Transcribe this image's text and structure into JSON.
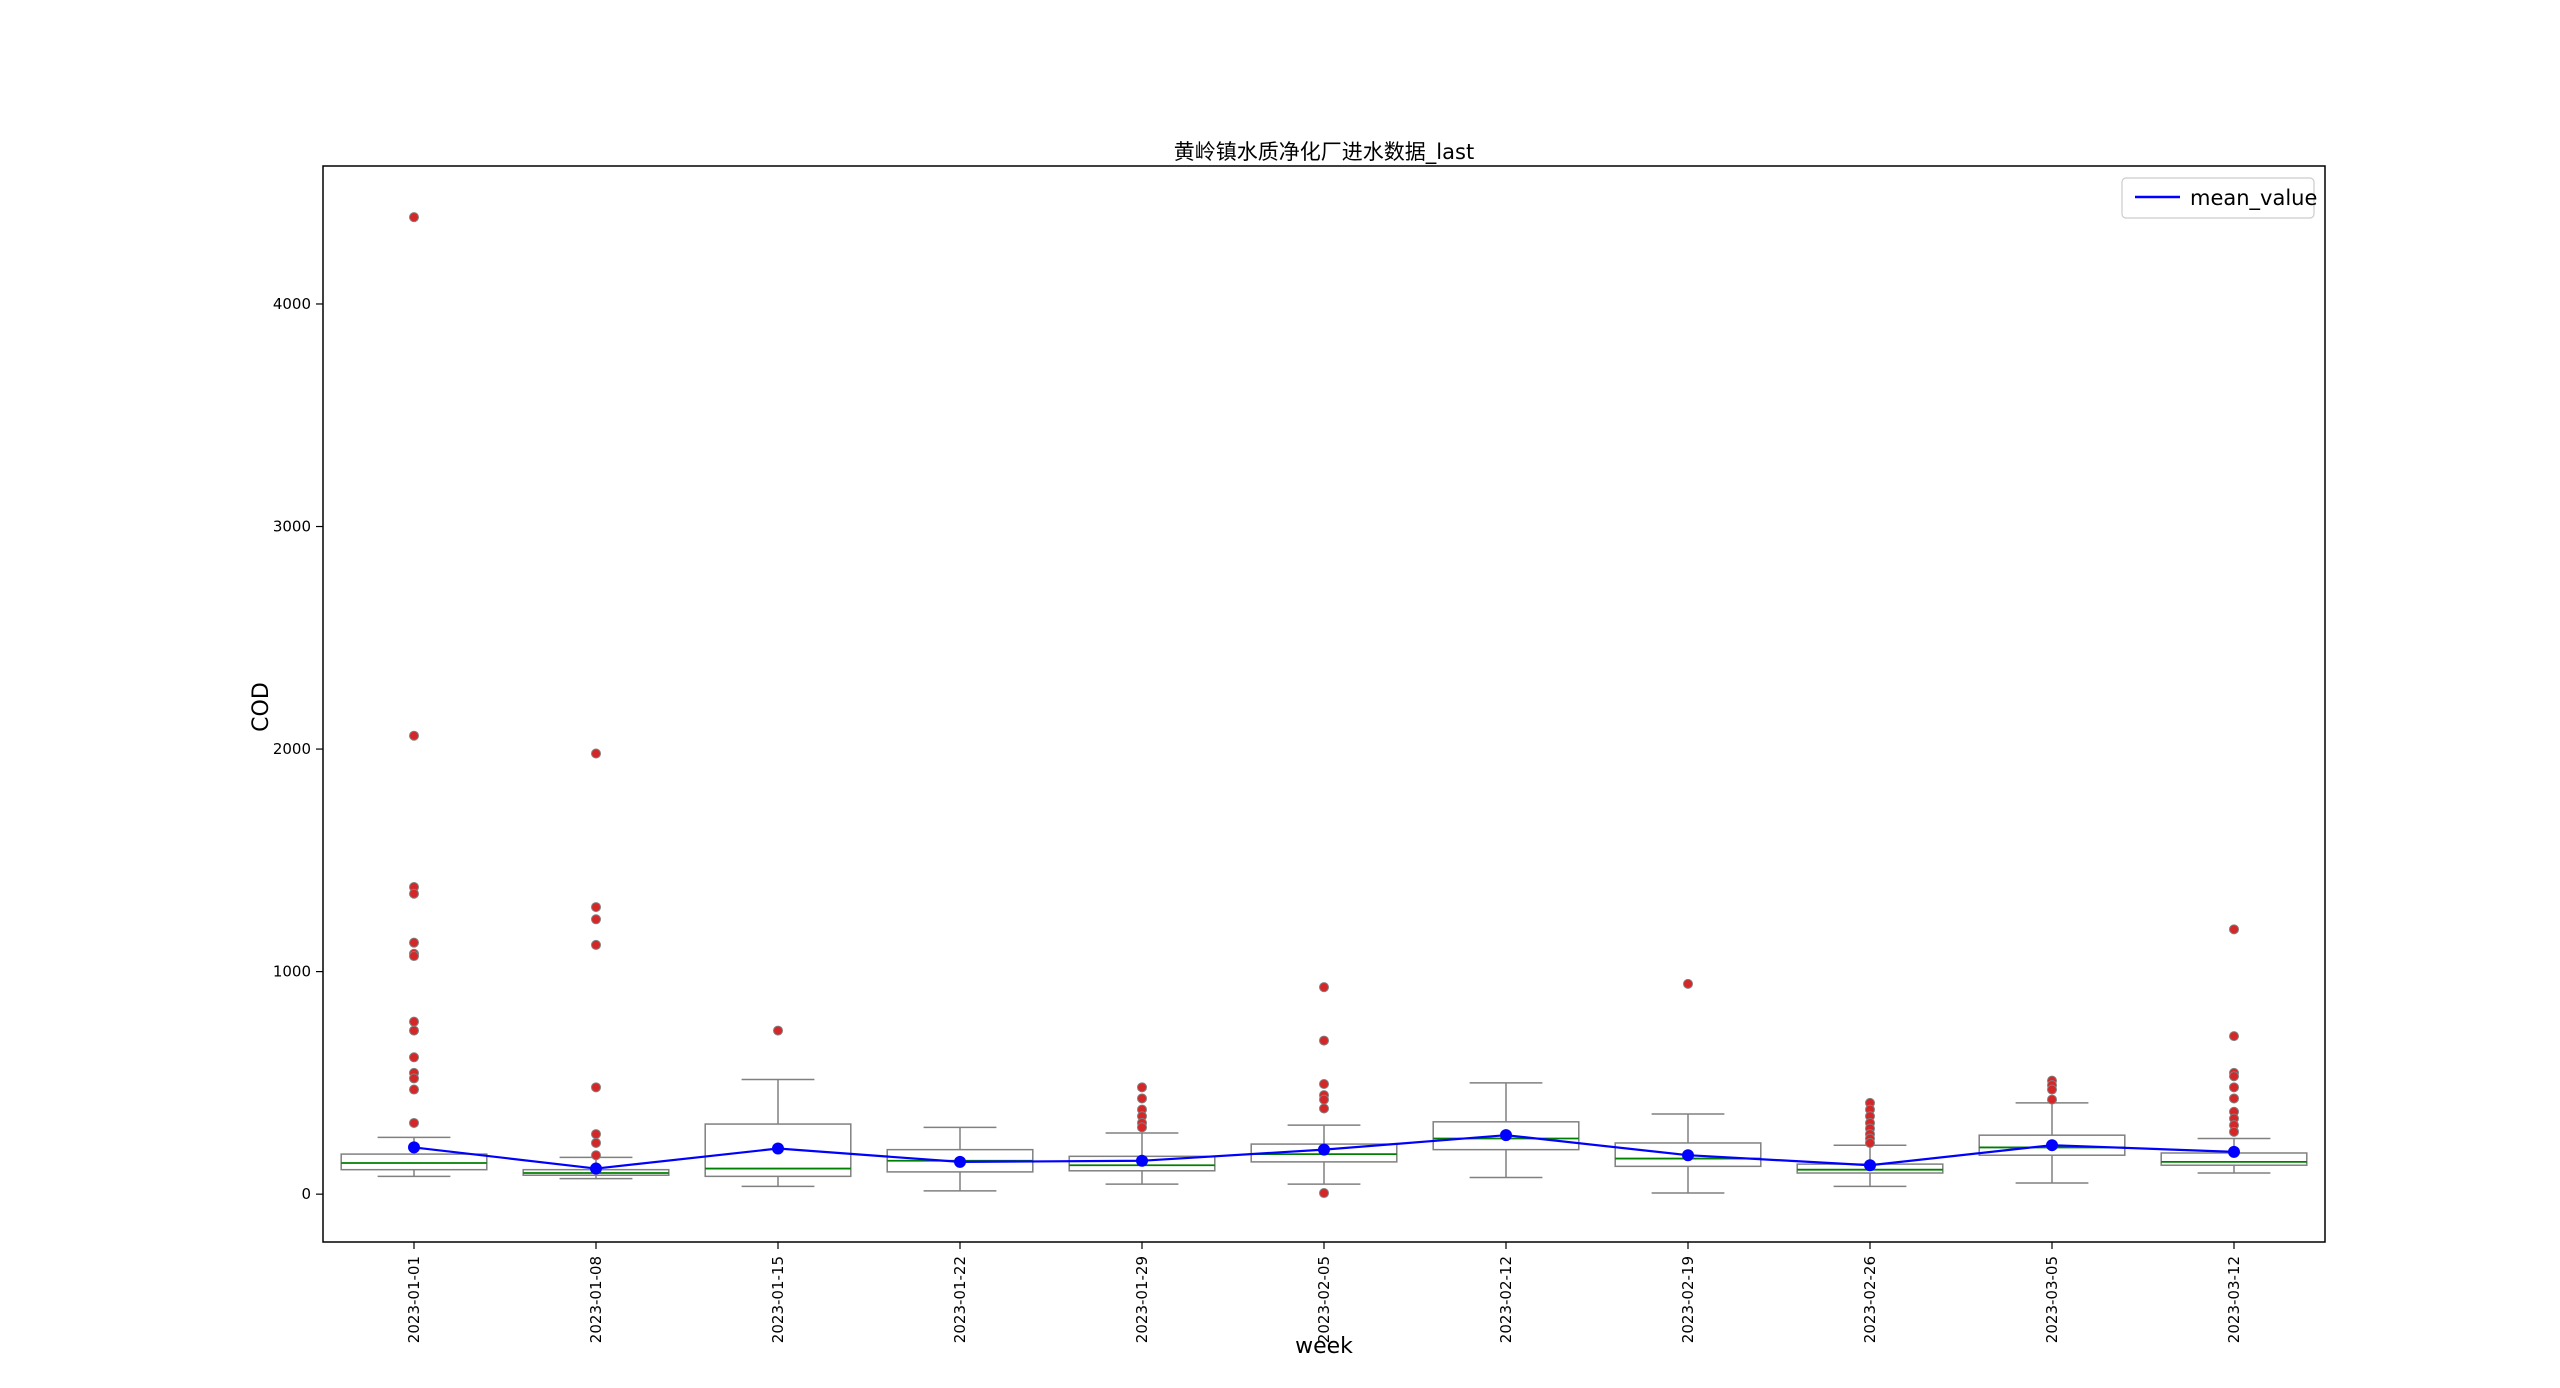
{
  "chart_data": {
    "type": "box",
    "title": "黄岭镇水质净化厂进水数据_last",
    "xlabel": "week",
    "ylabel": "COD",
    "ylim": [
      -215,
      4620
    ],
    "yticks": [
      0,
      1000,
      2000,
      3000,
      4000
    ],
    "ytick_labels": [
      "0",
      "1000",
      "2000",
      "3000",
      "4000"
    ],
    "grid": false,
    "legend": {
      "location": "upper-right",
      "entries": [
        {
          "name": "mean_value",
          "color": "#0000ff"
        }
      ]
    },
    "colors": {
      "box_edge": "#808080",
      "median": "#008000",
      "outlier_fill": "#d62728",
      "outlier_edge": "#808080",
      "mean_line": "#0000ff"
    },
    "categories": [
      "2023-01-01",
      "2023-01-08",
      "2023-01-15",
      "2023-01-22",
      "2023-01-29",
      "2023-02-05",
      "2023-02-12",
      "2023-02-19",
      "2023-02-26",
      "2023-03-05",
      "2023-03-12"
    ],
    "boxes": [
      {
        "category": "2023-01-01",
        "whisker_low": 80,
        "q1": 110,
        "median": 140,
        "q3": 180,
        "whisker_high": 255,
        "outliers": [
          4390,
          2060,
          1380,
          1350,
          1130,
          1080,
          1070,
          775,
          735,
          615,
          545,
          520,
          470,
          320
        ]
      },
      {
        "category": "2023-01-08",
        "whisker_low": 70,
        "q1": 85,
        "median": 95,
        "q3": 110,
        "whisker_high": 165,
        "outliers": [
          1980,
          1290,
          1235,
          1120,
          480,
          270,
          230,
          175
        ]
      },
      {
        "category": "2023-01-15",
        "whisker_low": 35,
        "q1": 80,
        "median": 115,
        "q3": 315,
        "whisker_high": 515,
        "outliers": [
          735
        ]
      },
      {
        "category": "2023-01-22",
        "whisker_low": 15,
        "q1": 100,
        "median": 150,
        "q3": 200,
        "whisker_high": 300,
        "outliers": []
      },
      {
        "category": "2023-01-29",
        "whisker_low": 45,
        "q1": 105,
        "median": 130,
        "q3": 170,
        "whisker_high": 275,
        "outliers": [
          480,
          430,
          380,
          350,
          320,
          300
        ]
      },
      {
        "category": "2023-02-05",
        "whisker_low": 45,
        "q1": 145,
        "median": 180,
        "q3": 225,
        "whisker_high": 310,
        "outliers": [
          930,
          690,
          495,
          445,
          425,
          385,
          5
        ]
      },
      {
        "category": "2023-02-12",
        "whisker_low": 75,
        "q1": 200,
        "median": 250,
        "q3": 325,
        "whisker_high": 500,
        "outliers": []
      },
      {
        "category": "2023-02-19",
        "whisker_low": 5,
        "q1": 125,
        "median": 160,
        "q3": 230,
        "whisker_high": 360,
        "outliers": [
          945
        ]
      },
      {
        "category": "2023-02-26",
        "whisker_low": 35,
        "q1": 95,
        "median": 110,
        "q3": 135,
        "whisker_high": 220,
        "outliers": [
          410,
          380,
          350,
          320,
          295,
          270,
          250,
          230
        ]
      },
      {
        "category": "2023-03-05",
        "whisker_low": 50,
        "q1": 175,
        "median": 210,
        "q3": 265,
        "whisker_high": 410,
        "outliers": [
          510,
          490,
          470,
          425
        ]
      },
      {
        "category": "2023-03-12",
        "whisker_low": 95,
        "q1": 130,
        "median": 145,
        "q3": 185,
        "whisker_high": 250,
        "outliers": [
          1190,
          710,
          545,
          530,
          480,
          430,
          370,
          340,
          310,
          280
        ]
      }
    ],
    "series": [
      {
        "name": "mean_value",
        "values": [
          210,
          115,
          205,
          145,
          150,
          200,
          265,
          175,
          130,
          220,
          190
        ]
      }
    ]
  }
}
